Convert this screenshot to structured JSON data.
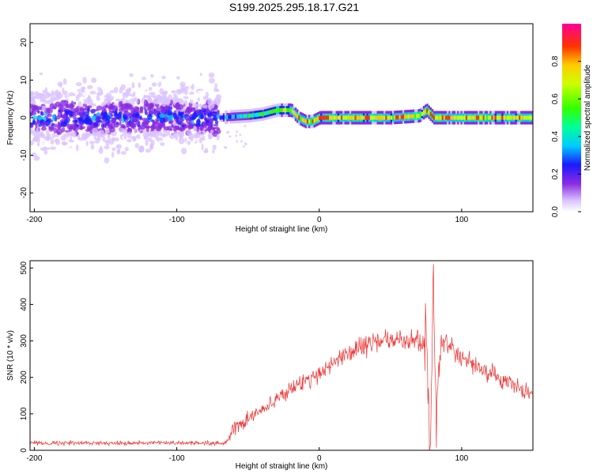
{
  "title": "S199.2025.295.18.17.G21",
  "chart_data": [
    {
      "type": "heatmap",
      "name": "spectrogram",
      "xlabel": "Height of straight line (km)",
      "ylabel": "Frequency (Hz)",
      "xlim": [
        -203,
        150
      ],
      "ylim": [
        -25,
        25
      ],
      "xticks": [
        -200,
        -100,
        0,
        100
      ],
      "yticks": [
        -20,
        -10,
        0,
        10,
        20
      ],
      "colorbar": {
        "label": "Normalized spectral amplitude",
        "range": [
          0,
          1
        ],
        "ticks": [
          "0.0",
          "0.2",
          "0.4",
          "0.6",
          "0.8"
        ]
      },
      "description_regions": [
        {
          "x_range": [
            -203,
            -70
          ],
          "frequency_center": 0,
          "spread_hz": 25,
          "amplitude": "low (0.05-0.3), noisy"
        },
        {
          "x_range": [
            -70,
            150
          ],
          "frequency_center": 0,
          "spread_hz": 1.5,
          "amplitude": "high (0.4-1.0), narrow band"
        }
      ],
      "ridge": {
        "x": [
          -70,
          -60,
          -50,
          -40,
          -30,
          -20,
          -15,
          -10,
          -5,
          0,
          10,
          50,
          70,
          75,
          80,
          150
        ],
        "freq": [
          0,
          0.3,
          0.5,
          1,
          2,
          2,
          0,
          -1,
          -1,
          0,
          0,
          0,
          0.5,
          2,
          0,
          0
        ]
      }
    },
    {
      "type": "line",
      "name": "snr",
      "xlabel": "Height of straight line (km)",
      "ylabel": "SNR (10 * v/v)",
      "xlim": [
        -203,
        150
      ],
      "ylim": [
        0,
        520
      ],
      "xticks": [
        -200,
        -100,
        0,
        100
      ],
      "yticks": [
        0,
        100,
        200,
        300,
        400,
        500
      ],
      "series": [
        {
          "name": "SNR",
          "color": "#ee3333",
          "x": [
            -203,
            -180,
            -150,
            -120,
            -90,
            -65,
            -60,
            -40,
            -20,
            0,
            20,
            40,
            60,
            75,
            78,
            80,
            82,
            85,
            100,
            120,
            150
          ],
          "values": [
            20,
            20,
            20,
            20,
            20,
            20,
            60,
            110,
            170,
            210,
            270,
            300,
            300,
            300,
            0,
            500,
            90,
            300,
            250,
            210,
            150
          ]
        }
      ]
    }
  ]
}
